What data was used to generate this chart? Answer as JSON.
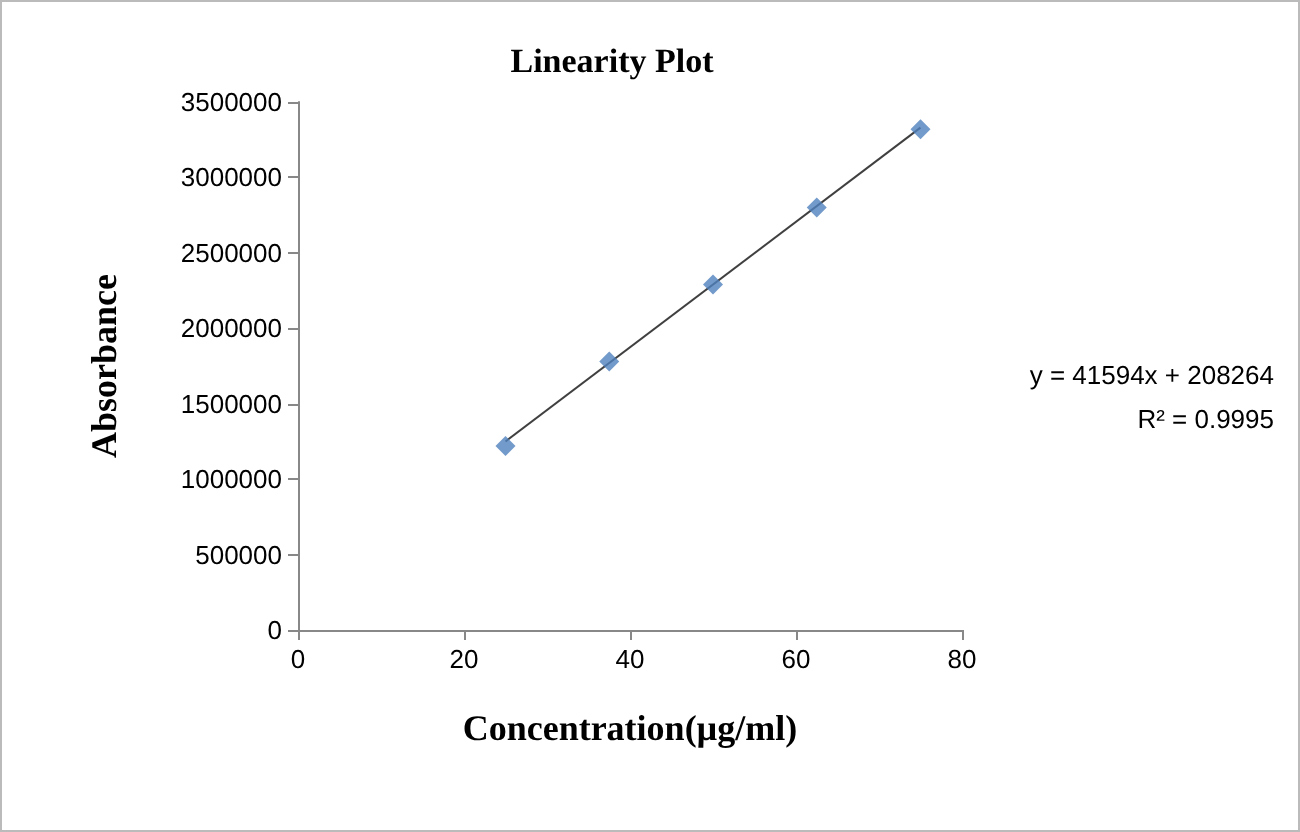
{
  "chart_data": {
    "type": "scatter",
    "title": "Linearity Plot",
    "xlabel": "Concentration(µg/ml)",
    "ylabel": "Absorbance",
    "x": [
      25,
      37.5,
      50,
      62.5,
      75
    ],
    "series": [
      {
        "color": "#4f81bd",
        "values": [
          1220000,
          1780000,
          2290000,
          2800000,
          3320000
        ]
      },
      {
        "type": "line",
        "marker": "none",
        "line_style": "solid",
        "color": "#404040",
        "x": [
          25,
          75
        ],
        "values": [
          1250000,
          3330000
        ]
      }
    ],
    "marker": "diamond",
    "xlim": [
      0,
      80
    ],
    "xticks": [
      0,
      20,
      40,
      60,
      80
    ],
    "ylim": [
      0,
      3500000
    ],
    "yticks": [
      0,
      500000,
      1000000,
      1500000,
      2000000,
      2500000,
      3000000,
      3500000
    ],
    "annotations": [
      "y = 41594x + 208264",
      "R² = 0.9995"
    ]
  }
}
